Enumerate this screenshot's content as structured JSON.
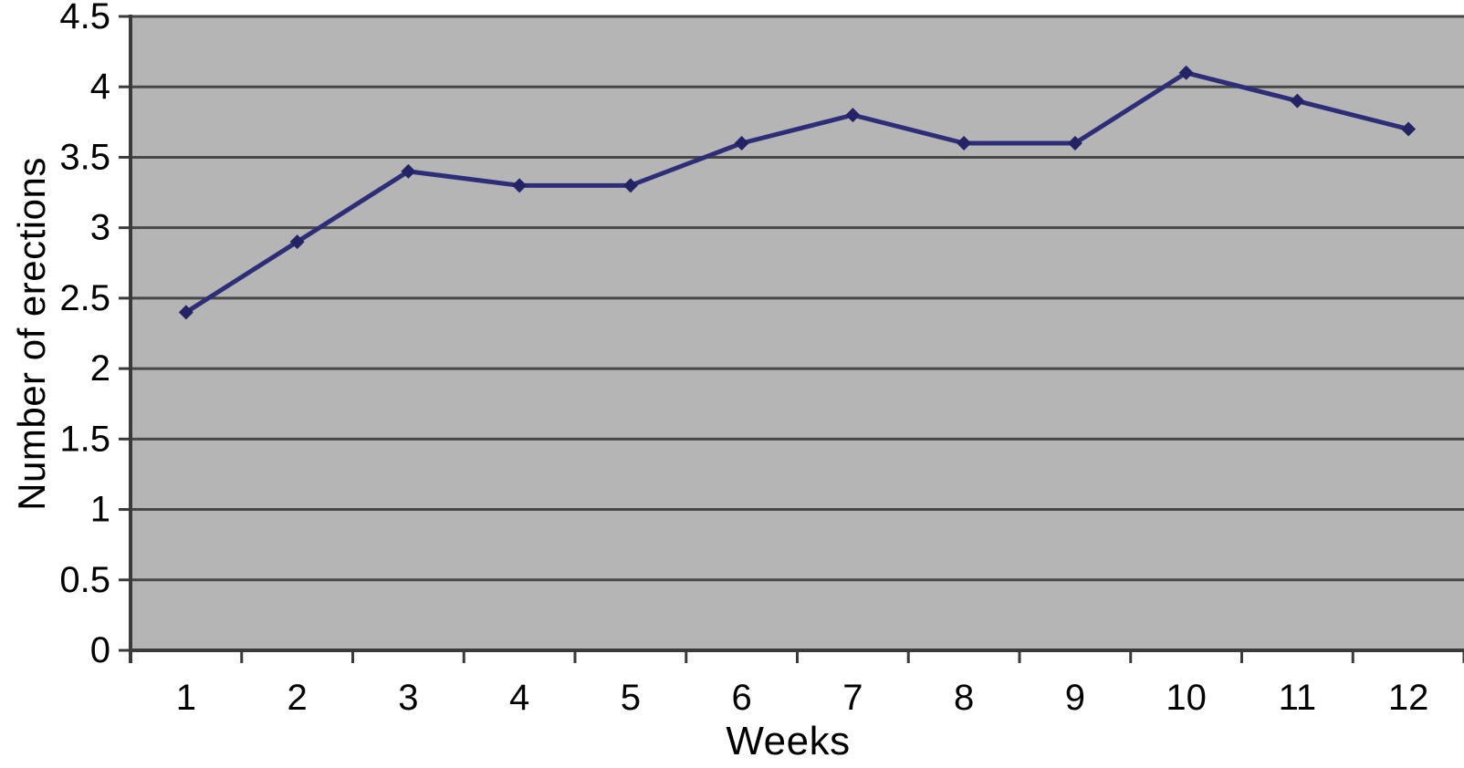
{
  "chart_data": {
    "type": "line",
    "title": "",
    "xlabel": "Weeks",
    "ylabel": "Number of erections",
    "categories": [
      1,
      2,
      3,
      4,
      5,
      6,
      7,
      8,
      9,
      10,
      11,
      12
    ],
    "series": [
      {
        "name": "Number of erections",
        "values": [
          2.4,
          2.9,
          3.4,
          3.3,
          3.3,
          3.6,
          3.8,
          3.6,
          3.6,
          4.1,
          3.9,
          3.7
        ]
      }
    ],
    "ylim": [
      0,
      4.5
    ],
    "ytick_step": 0.5,
    "y_tick_labels": [
      "0",
      "0.5",
      "1",
      "1.5",
      "2",
      "2.5",
      "3",
      "3.5",
      "4",
      "4.5"
    ],
    "grid": "horizontal",
    "legend_position": "none",
    "marker": "diamond",
    "colors": {
      "series_line": "#2e2e78",
      "series_marker": "#232366",
      "plot_background": "#b5b5b5",
      "gridline": "#474747",
      "axis_line": "#3a3a3a",
      "tick_label": "#000000",
      "axis_title": "#000000",
      "page_background": "#ffffff"
    }
  }
}
